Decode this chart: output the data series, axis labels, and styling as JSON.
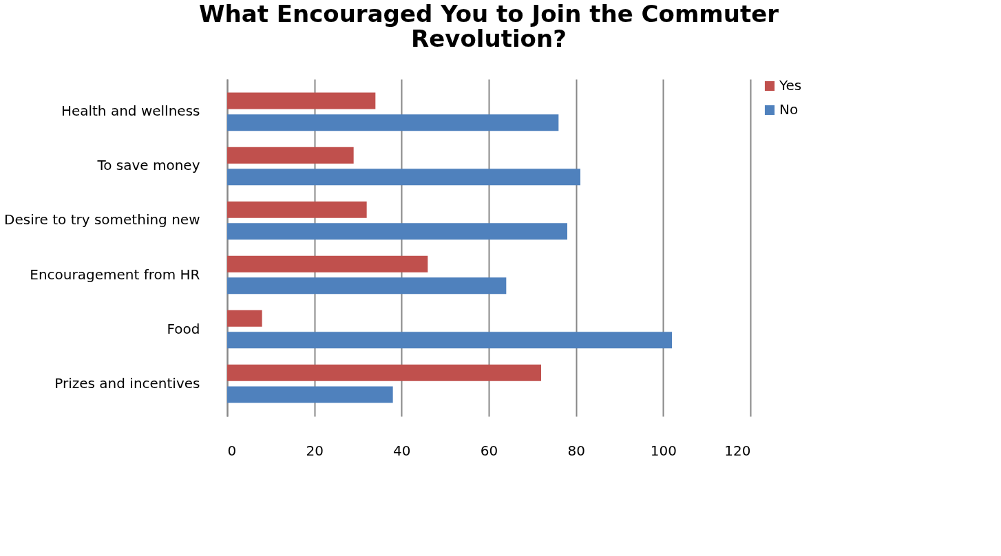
{
  "chart_data": {
    "type": "bar",
    "orientation": "horizontal",
    "title": [
      "What Encouraged You to Join the Commuter",
      "Revolution?"
    ],
    "categories": [
      "Health and wellness",
      "To save money",
      "Desire to try something new",
      "Encouragement from HR",
      "Food",
      "Prizes and incentives"
    ],
    "series": [
      {
        "name": "Yes",
        "color": "#c0504d",
        "values": [
          34,
          29,
          32,
          46,
          8,
          72
        ]
      },
      {
        "name": "No",
        "color": "#4f81bd",
        "values": [
          76,
          81,
          78,
          64,
          102,
          38
        ]
      }
    ],
    "xlim": [
      0,
      120
    ],
    "xticks": [
      0,
      20,
      40,
      60,
      80,
      100,
      120
    ],
    "grid": "x",
    "legend": "right"
  }
}
